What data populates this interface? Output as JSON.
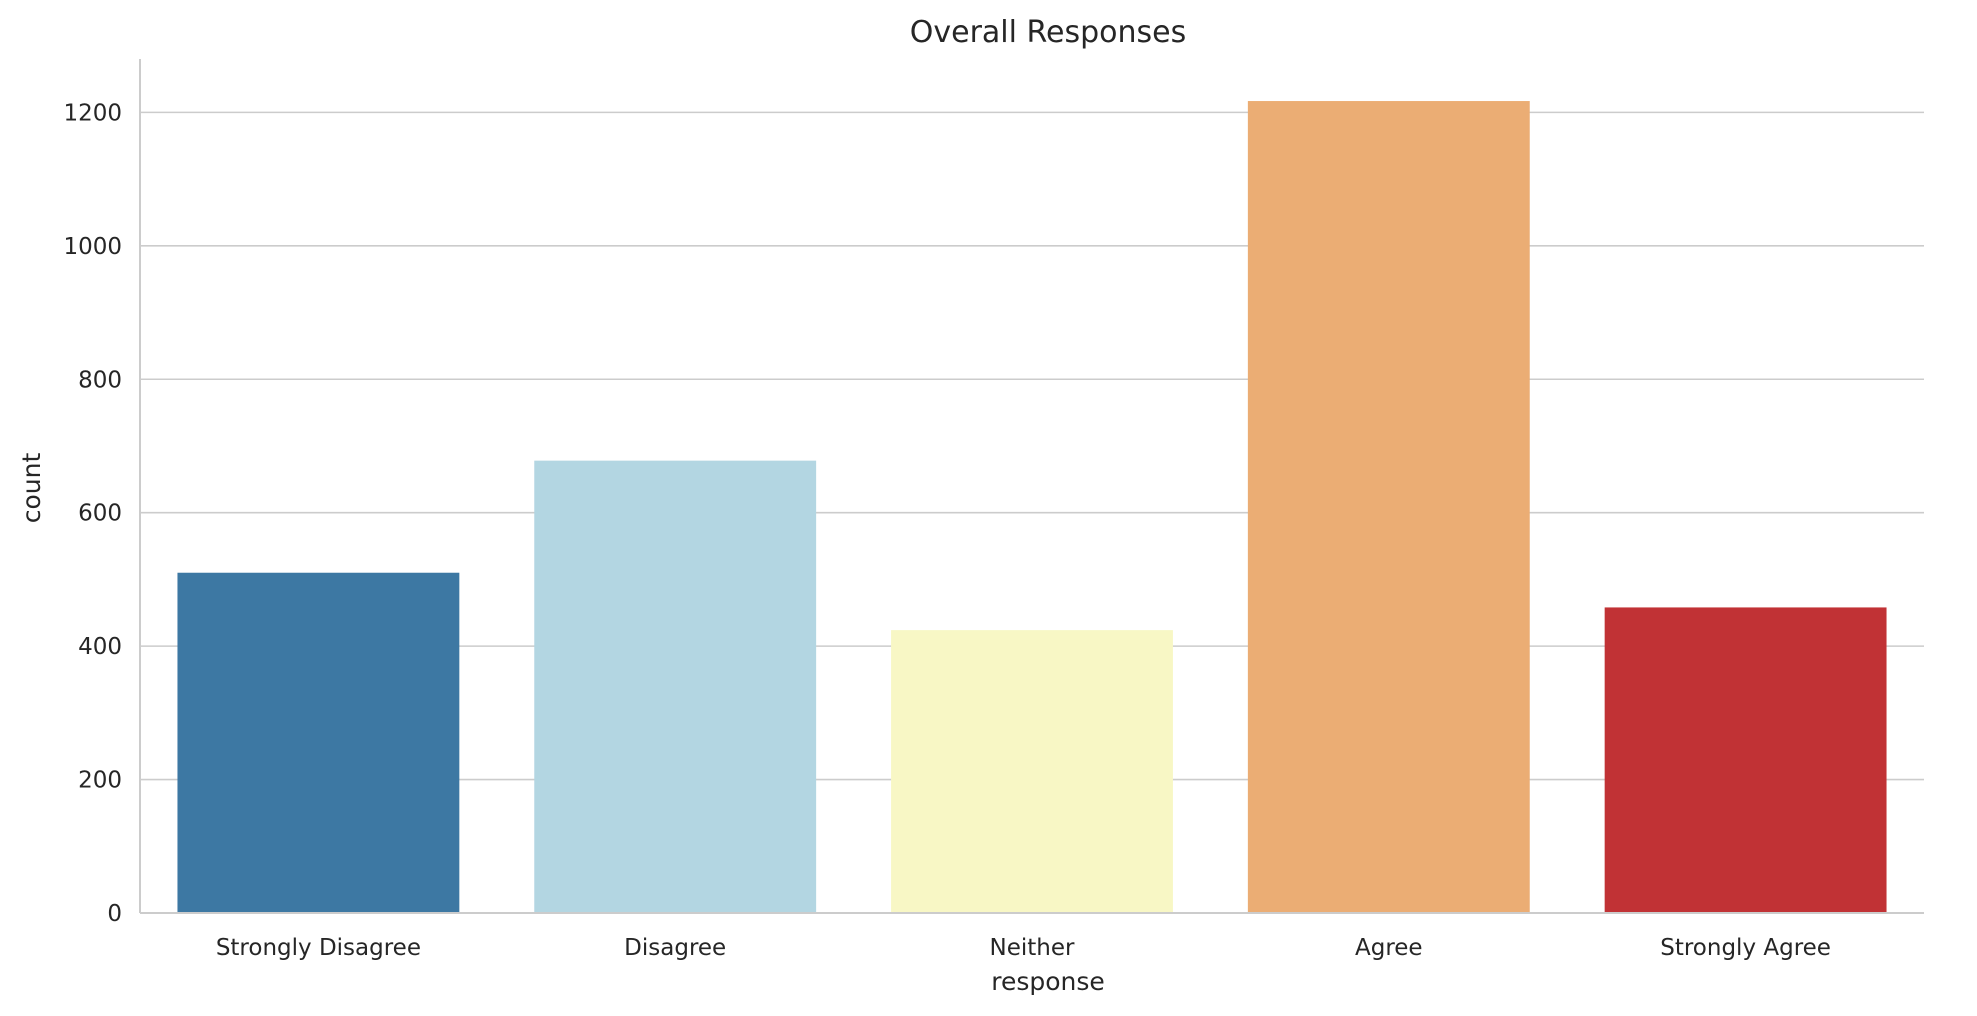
{
  "chart_data": {
    "type": "bar",
    "title": "Overall Responses",
    "xlabel": "response",
    "ylabel": "count",
    "categories": [
      "Strongly Disagree",
      "Disagree",
      "Neither",
      "Agree",
      "Strongly Agree"
    ],
    "values": [
      510,
      678,
      424,
      1217,
      458
    ],
    "colors": [
      "#3d78a3",
      "#b3d6e2",
      "#f8f7c5",
      "#ebad74",
      "#c13235"
    ],
    "ylim": [
      0,
      1280
    ],
    "yticks": [
      0,
      200,
      400,
      600,
      800,
      1000,
      1200
    ],
    "ytick_labels": [
      "0",
      "200",
      "400",
      "600",
      "800",
      "1000",
      "1200"
    ],
    "grid": "horizontal",
    "style": {
      "gridColor": "#cccccc",
      "spineColor": "#cccccc",
      "textColor": "#262626"
    }
  }
}
